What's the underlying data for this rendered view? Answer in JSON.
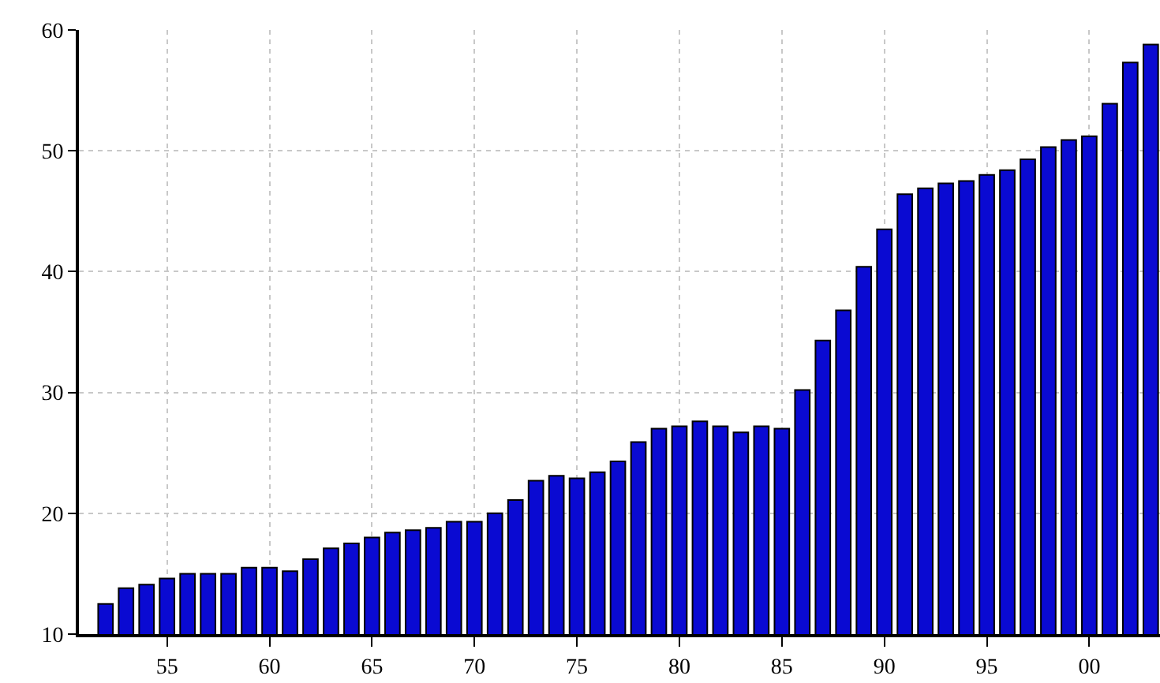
{
  "chart_data": {
    "type": "bar",
    "categories": [
      null,
      null,
      null,
      "55",
      null,
      null,
      null,
      null,
      "60",
      null,
      null,
      null,
      null,
      "65",
      null,
      null,
      null,
      null,
      "70",
      null,
      null,
      null,
      null,
      "75",
      null,
      null,
      null,
      null,
      "80",
      null,
      null,
      null,
      null,
      "85",
      null,
      null,
      null,
      null,
      "90",
      null,
      null,
      null,
      null,
      "95",
      null,
      null,
      null,
      null,
      "00",
      null,
      null,
      null
    ],
    "values": [
      12.5,
      13.8,
      14.1,
      14.6,
      15.0,
      15.0,
      15.0,
      15.5,
      15.5,
      15.2,
      16.2,
      17.1,
      17.5,
      18.0,
      18.4,
      18.6,
      18.8,
      19.3,
      19.3,
      20.0,
      21.1,
      22.7,
      23.1,
      22.9,
      23.4,
      24.3,
      25.9,
      27.0,
      27.2,
      27.6,
      27.2,
      26.7,
      27.2,
      27.0,
      30.2,
      34.3,
      36.8,
      40.4,
      43.5,
      46.4,
      46.9,
      47.3,
      47.5,
      48.0,
      48.4,
      49.3,
      50.3,
      50.9,
      51.2,
      53.9,
      57.3,
      58.8
    ],
    "color": "#0a0ad2",
    "ylim": [
      10,
      60
    ],
    "yticks": [
      10,
      20,
      30,
      40,
      50,
      60
    ],
    "grid": true
  }
}
